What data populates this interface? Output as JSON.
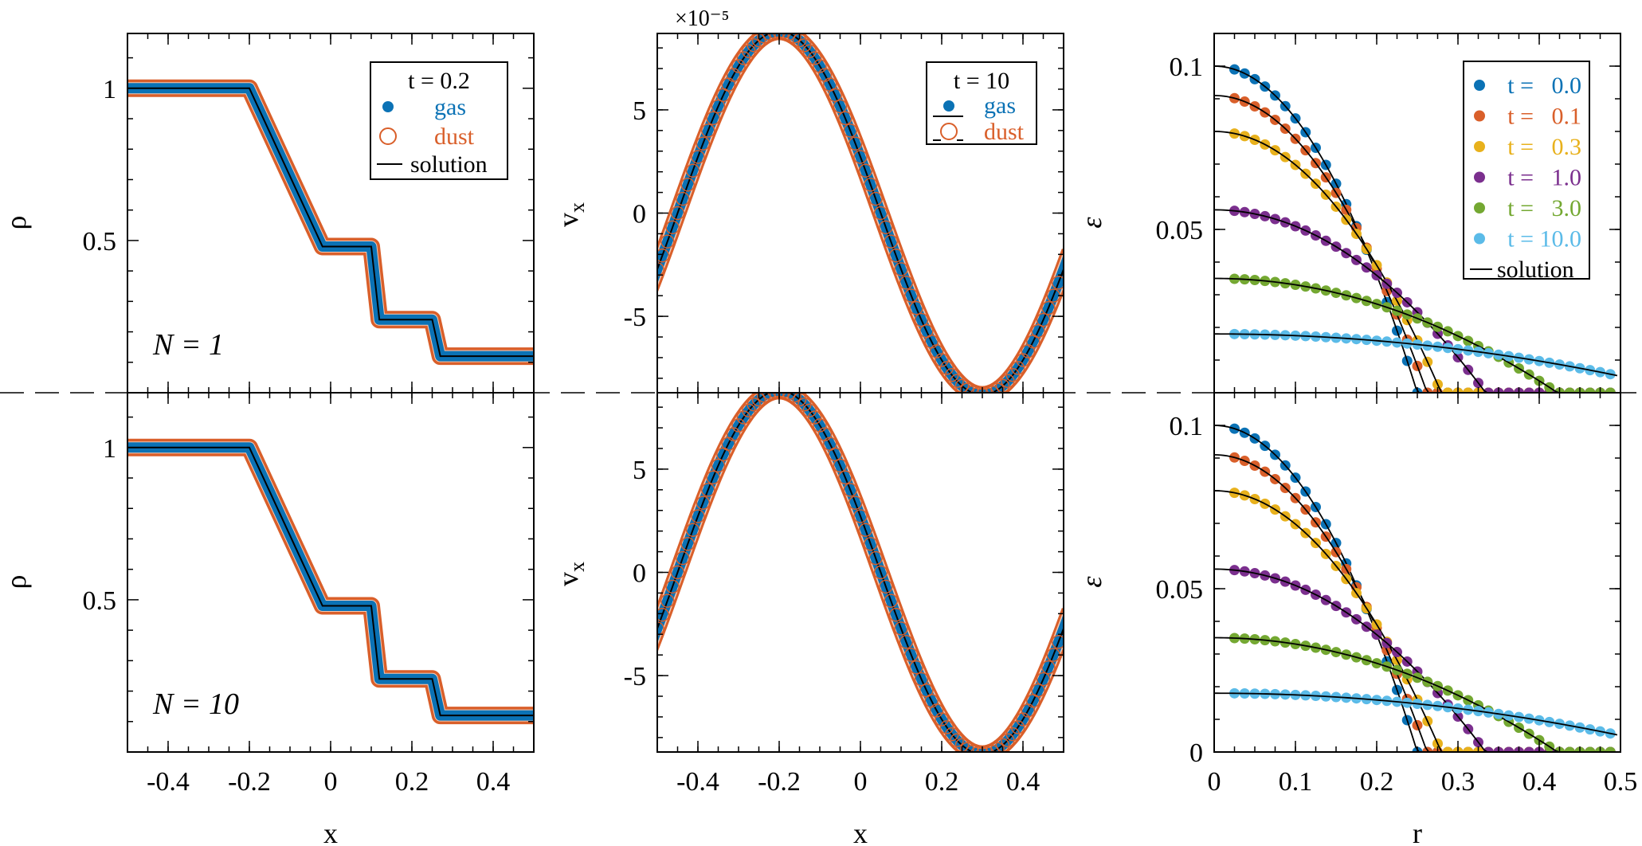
{
  "figure_note": "",
  "colors": {
    "gas": "#0b72b5",
    "dust": "#d95f2a",
    "solution": "#000000",
    "t_colors": [
      "#0b72b5",
      "#d95f2a",
      "#e8b11c",
      "#7b2f8e",
      "#74a832",
      "#5bbbe8"
    ]
  },
  "chart_data": [
    {
      "id": "sod_N1",
      "type": "scatter",
      "title": "",
      "xlabel": "",
      "ylabel": "ρ",
      "xlim": [
        -0.5,
        0.5
      ],
      "ylim": [
        0,
        1.18
      ],
      "yticks": [
        0.5,
        1
      ],
      "ytick_labels": [
        "0.5",
        "1"
      ],
      "annotation": "N = 1",
      "legend": {
        "title": "t = 0.2",
        "entries": [
          "gas",
          "dust",
          "solution"
        ],
        "position": "top-right"
      },
      "series": [
        {
          "name": "gas",
          "x": [
            -0.5,
            -0.2,
            -0.02,
            0.1,
            0.12,
            0.25,
            0.27,
            0.5
          ],
          "y": [
            1.0,
            1.0,
            0.48,
            0.48,
            0.24,
            0.24,
            0.12,
            0.12
          ]
        },
        {
          "name": "dust",
          "x": [
            -0.5,
            -0.2,
            -0.02,
            0.1,
            0.12,
            0.25,
            0.27,
            0.5
          ],
          "y": [
            1.0,
            1.0,
            0.48,
            0.48,
            0.24,
            0.24,
            0.12,
            0.12
          ]
        },
        {
          "name": "solution",
          "x": [
            -0.5,
            -0.2,
            -0.02,
            0.1,
            0.12,
            0.25,
            0.27,
            0.5
          ],
          "y": [
            1.0,
            1.0,
            0.48,
            0.48,
            0.24,
            0.24,
            0.12,
            0.12
          ]
        }
      ]
    },
    {
      "id": "wave_N1",
      "type": "scatter",
      "title": "",
      "xlabel": "",
      "ylabel": "v_x",
      "y_multiplier": "×10⁻⁵",
      "xlim": [
        -0.5,
        0.5
      ],
      "ylim": [
        -8.7,
        8.7
      ],
      "yticks": [
        -5,
        0,
        5
      ],
      "ytick_labels": [
        "-5",
        "0",
        "5"
      ],
      "legend": {
        "title": "t = 10",
        "entries": [
          "gas",
          "dust"
        ],
        "position": "top-right"
      },
      "wave": {
        "amplitude": 8.8,
        "wavelength": 1.0,
        "peak_x": -0.2
      }
    },
    {
      "id": "diff_N1",
      "type": "scatter",
      "title": "",
      "xlabel": "",
      "ylabel": "ε",
      "xlim": [
        0,
        0.5
      ],
      "ylim": [
        0,
        0.11
      ],
      "yticks": [
        0.05,
        0.1
      ],
      "ytick_labels": [
        "0.05",
        "0.1"
      ],
      "legend": {
        "entries": [
          "t =   0.0",
          "t =   0.1",
          "t =   0.3",
          "t =   1.0",
          "t =   3.0",
          "t = 10.0",
          "solution"
        ],
        "position": "top-right"
      },
      "series": [
        {
          "name": "t =   0.0",
          "t": 0.0
        },
        {
          "name": "t =   0.1",
          "t": 0.1
        },
        {
          "name": "t =   0.3",
          "t": 0.3
        },
        {
          "name": "t =   1.0",
          "t": 1.0
        },
        {
          "name": "t =   3.0",
          "t": 3.0
        },
        {
          "name": "t = 10.0",
          "t": 10.0
        }
      ]
    },
    {
      "id": "sod_N10",
      "type": "scatter",
      "title": "",
      "xlabel": "x",
      "ylabel": "ρ",
      "xlim": [
        -0.5,
        0.5
      ],
      "ylim": [
        0,
        1.18
      ],
      "xticks": [
        -0.4,
        -0.2,
        0,
        0.2,
        0.4
      ],
      "xtick_labels": [
        "-0.4",
        "-0.2",
        "0",
        "0.2",
        "0.4"
      ],
      "yticks": [
        0.5,
        1
      ],
      "ytick_labels": [
        "0.5",
        "1"
      ],
      "annotation": "N = 10",
      "series": [
        {
          "name": "gas",
          "x": [
            -0.5,
            -0.2,
            -0.02,
            0.1,
            0.12,
            0.25,
            0.27,
            0.5
          ],
          "y": [
            1.0,
            1.0,
            0.48,
            0.48,
            0.24,
            0.24,
            0.12,
            0.12
          ]
        },
        {
          "name": "dust",
          "x": [
            -0.5,
            -0.2,
            -0.02,
            0.1,
            0.12,
            0.25,
            0.27,
            0.5
          ],
          "y": [
            1.0,
            1.0,
            0.48,
            0.48,
            0.24,
            0.24,
            0.12,
            0.12
          ]
        },
        {
          "name": "solution",
          "x": [
            -0.5,
            -0.2,
            -0.02,
            0.1,
            0.12,
            0.25,
            0.27,
            0.5
          ],
          "y": [
            1.0,
            1.0,
            0.48,
            0.48,
            0.24,
            0.24,
            0.12,
            0.12
          ]
        }
      ]
    },
    {
      "id": "wave_N10",
      "type": "scatter",
      "title": "",
      "xlabel": "x",
      "ylabel": "v_x",
      "xlim": [
        -0.5,
        0.5
      ],
      "ylim": [
        -8.7,
        8.7
      ],
      "xticks": [
        -0.4,
        -0.2,
        0,
        0.2,
        0.4
      ],
      "xtick_labels": [
        "-0.4",
        "-0.2",
        "0",
        "0.2",
        "0.4"
      ],
      "yticks": [
        -5,
        0,
        5
      ],
      "ytick_labels": [
        "-5",
        "0",
        "5"
      ],
      "wave": {
        "amplitude": 8.8,
        "wavelength": 1.0,
        "peak_x": -0.2
      }
    },
    {
      "id": "diff_N10",
      "type": "scatter",
      "title": "",
      "xlabel": "r",
      "ylabel": "ε",
      "xlim": [
        0,
        0.5
      ],
      "ylim": [
        0,
        0.11
      ],
      "xticks": [
        0,
        0.1,
        0.2,
        0.3,
        0.4,
        0.5
      ],
      "xtick_labels": [
        "0",
        "0.1",
        "0.2",
        "0.3",
        "0.4",
        "0.5"
      ],
      "yticks": [
        0,
        0.05,
        0.1
      ],
      "ytick_labels": [
        "0",
        "0.05",
        "0.1"
      ],
      "series": [
        {
          "name": "t =   0.0",
          "t": 0.0
        },
        {
          "name": "t =   0.1",
          "t": 0.1
        },
        {
          "name": "t =   0.3",
          "t": 0.3
        },
        {
          "name": "t =   1.0",
          "t": 1.0
        },
        {
          "name": "t =   3.0",
          "t": 3.0
        },
        {
          "name": "t = 10.0",
          "t": 10.0
        }
      ]
    }
  ]
}
